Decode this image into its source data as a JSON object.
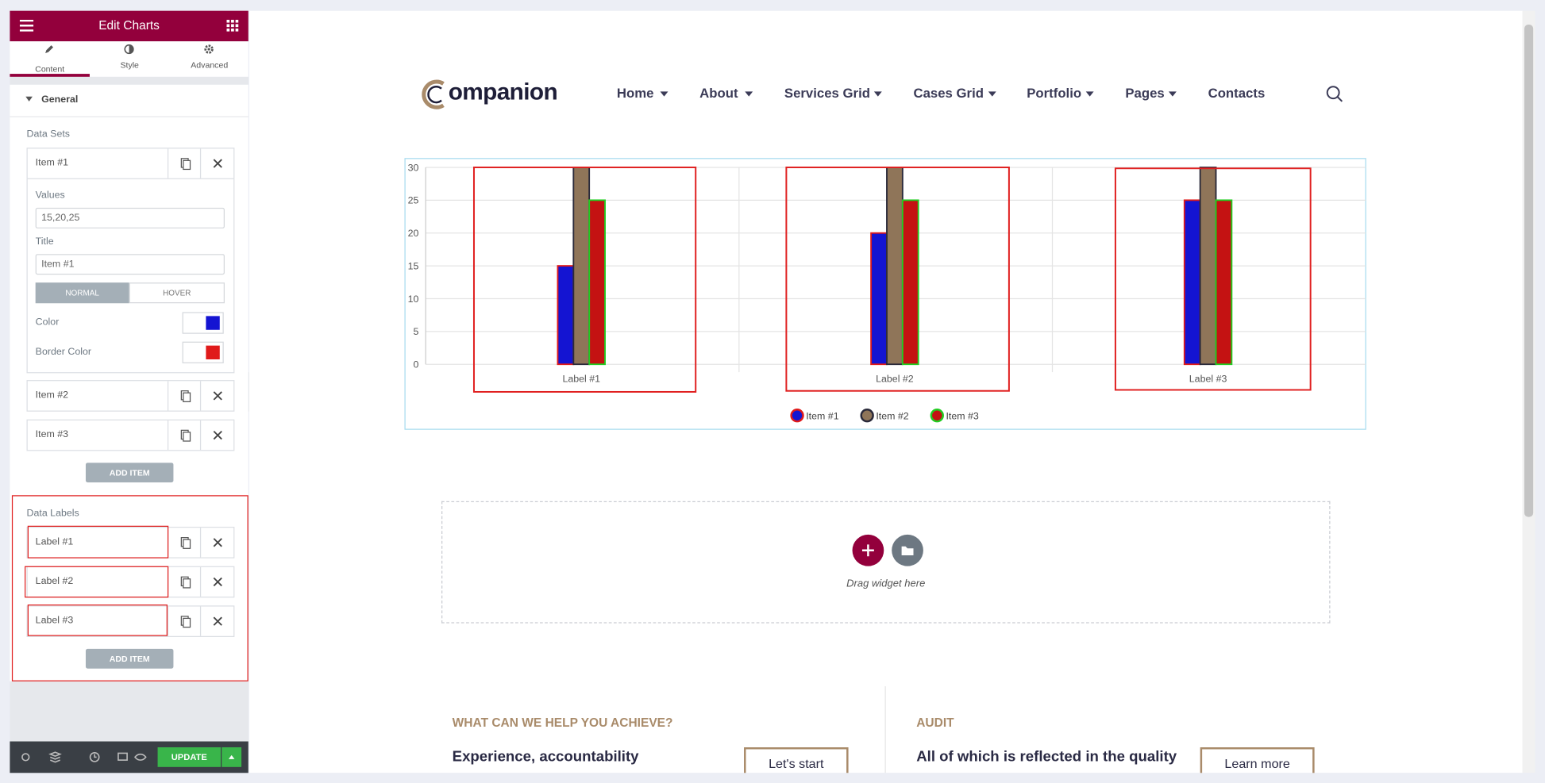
{
  "sidebar": {
    "title": "Edit Charts",
    "tabs": [
      "Content",
      "Style",
      "Advanced"
    ],
    "section": "General",
    "data_sets_label": "Data Sets",
    "items": [
      "Item #1",
      "Item #2",
      "Item #3"
    ],
    "values_label": "Values",
    "values_input": "15,20,25",
    "title_label": "Title",
    "title_input": "Item #1",
    "state_tabs": [
      "NORMAL",
      "HOVER"
    ],
    "color_label": "Color",
    "border_color_label": "Border Color",
    "add_item": "ADD ITEM",
    "data_labels_label": "Data Labels",
    "labels": [
      "Label #1",
      "Label #2",
      "Label #3"
    ],
    "add_label": "ADD ITEM",
    "update": "UPDATE"
  },
  "site": {
    "logo": "ompanion",
    "nav": [
      "Home",
      "About",
      "Services Grid",
      "Cases Grid",
      "Portfolio",
      "Pages",
      "Contacts"
    ]
  },
  "chart_data": {
    "type": "bar",
    "categories": [
      "Label #1",
      "Label #2",
      "Label #3"
    ],
    "series": [
      {
        "name": "Item #1",
        "color": "#1414d2",
        "border_color": "#e01a1a",
        "values": [
          15,
          20,
          25
        ]
      },
      {
        "name": "Item #2",
        "color": "#8f7559",
        "border_color": "#2a2a3a",
        "values": [
          30,
          30,
          30
        ]
      },
      {
        "name": "Item #3",
        "color": "#c41212",
        "border_color": "#22cc22",
        "values": [
          25,
          25,
          25
        ]
      }
    ],
    "ylim": [
      0,
      30
    ],
    "yticks": [
      0,
      5,
      10,
      15,
      20,
      25,
      30
    ],
    "grid": true,
    "legend": "bottom"
  },
  "dropzone": {
    "text": "Drag widget here"
  },
  "sections": [
    {
      "heading": "WHAT CAN WE HELP YOU ACHIEVE?",
      "text": "Experience, accountability",
      "button": "Let's start"
    },
    {
      "heading": "AUDIT",
      "text": "All of which is reflected in the quality",
      "button": "Learn more"
    }
  ]
}
